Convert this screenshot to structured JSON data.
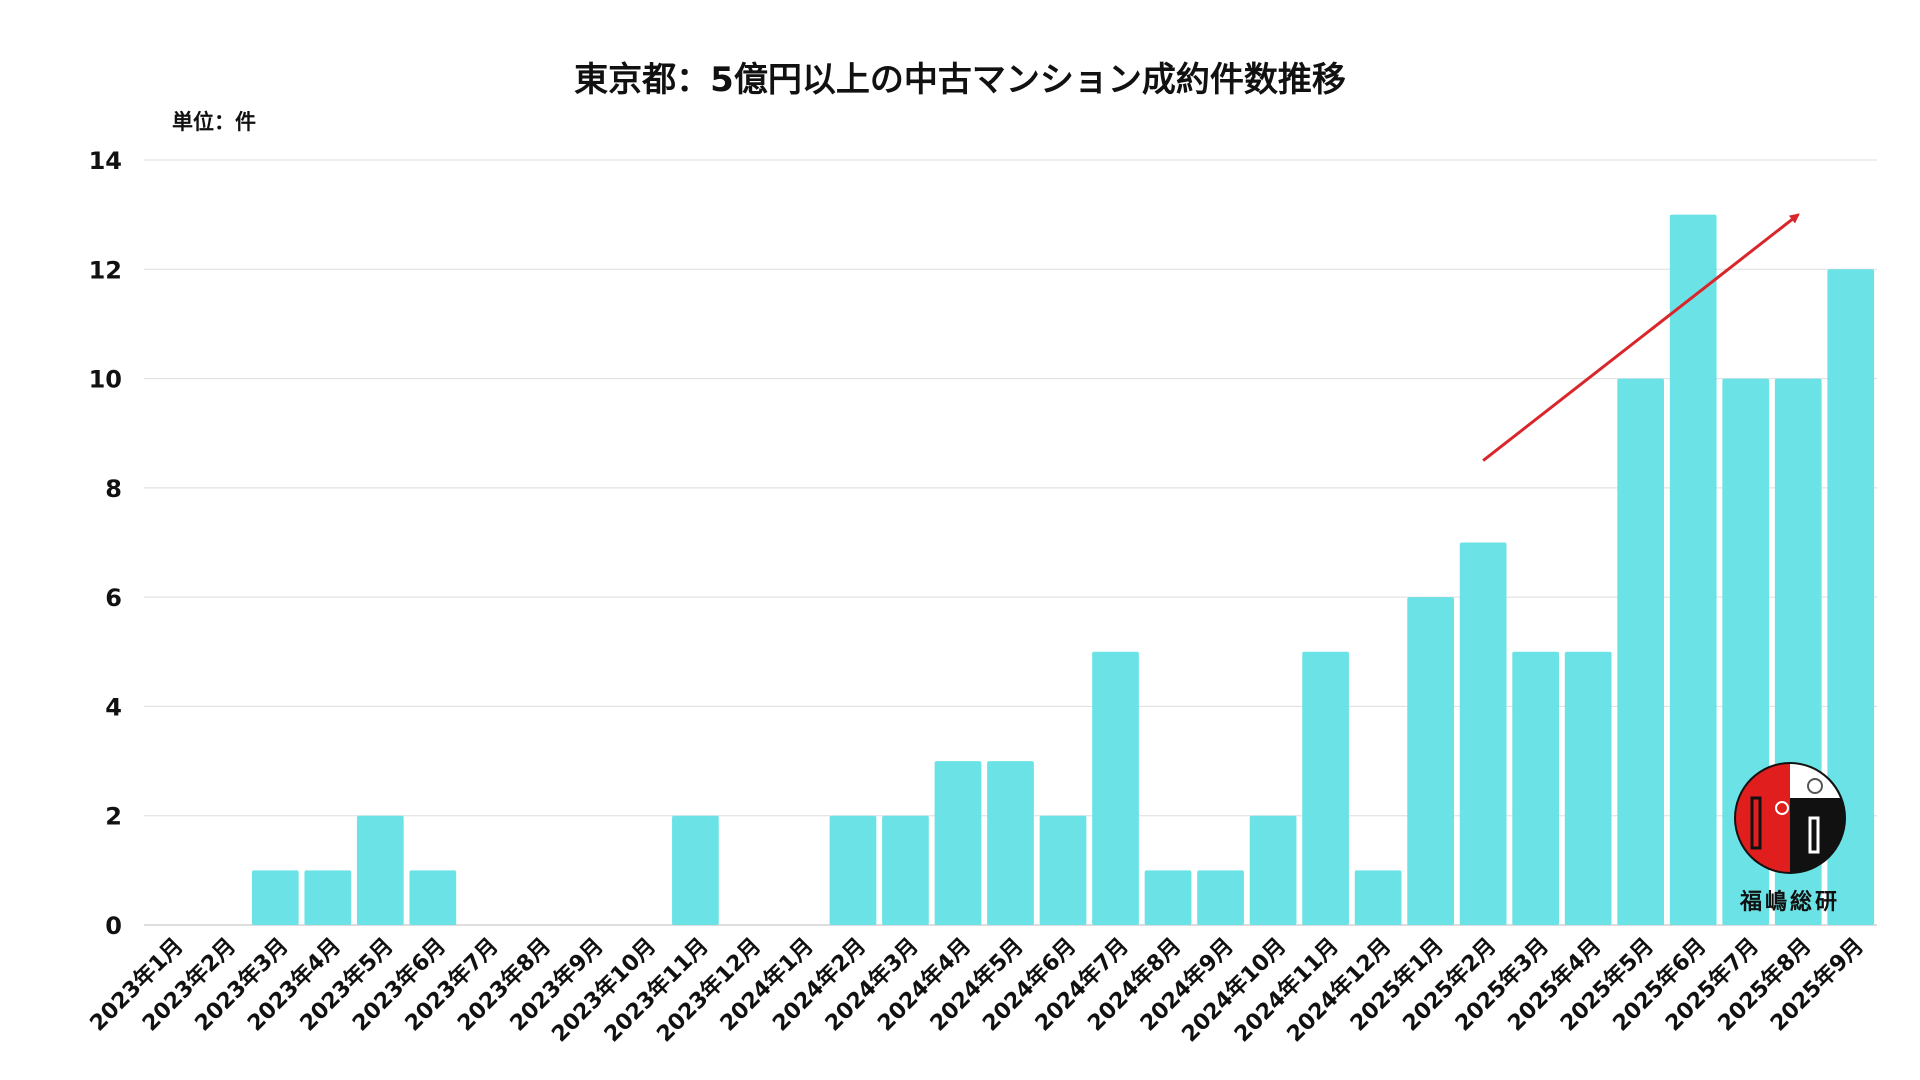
{
  "chart_data": {
    "type": "bar",
    "title": "東京都：5億円以上の中古マンション成約件数推移",
    "unit_label": "単位：件",
    "xlabel": "",
    "ylabel": "",
    "ylim": [
      0,
      14
    ],
    "yticks": [
      0,
      2,
      4,
      6,
      8,
      10,
      12,
      14
    ],
    "grid": true,
    "bar_color": "#6be3e6",
    "trend_arrow_color": "#d9262b",
    "trend_arrow": {
      "from": [
        "2025年2月",
        8.5
      ],
      "to": [
        "2025年8月",
        13
      ]
    },
    "categories": [
      "2023年1月",
      "2023年2月",
      "2023年3月",
      "2023年4月",
      "2023年5月",
      "2023年6月",
      "2023年7月",
      "2023年8月",
      "2023年9月",
      "2023年10月",
      "2023年11月",
      "2023年12月",
      "2024年1月",
      "2024年2月",
      "2024年3月",
      "2024年4月",
      "2024年5月",
      "2024年6月",
      "2024年7月",
      "2024年8月",
      "2024年9月",
      "2024年10月",
      "2024年11月",
      "2024年12月",
      "2025年1月",
      "2025年2月",
      "2025年3月",
      "2025年4月",
      "2025年5月",
      "2025年6月",
      "2025年7月",
      "2025年8月",
      "2025年9月"
    ],
    "values": [
      0,
      0,
      1,
      1,
      2,
      1,
      0,
      0,
      0,
      0,
      2,
      0,
      0,
      2,
      2,
      3,
      3,
      2,
      5,
      1,
      1,
      2,
      5,
      1,
      6,
      7,
      5,
      5,
      10,
      13,
      10,
      10,
      12
    ]
  },
  "logo": {
    "text": "福嶋総研"
  }
}
